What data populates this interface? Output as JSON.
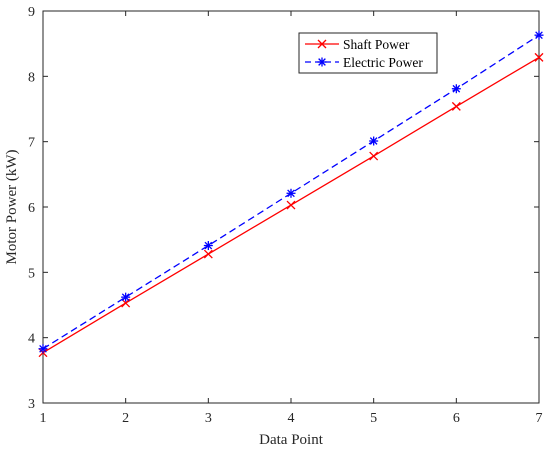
{
  "chart_data": {
    "type": "line",
    "title": "",
    "xlabel": "Data Point",
    "ylabel": "Motor Power (kW)",
    "xlim": [
      1,
      7
    ],
    "ylim": [
      3,
      9
    ],
    "x": [
      1,
      2,
      3,
      4,
      5,
      6,
      7
    ],
    "xticks": [
      "1",
      "2",
      "3",
      "4",
      "5",
      "6",
      "7"
    ],
    "yticks": [
      "3",
      "4",
      "5",
      "6",
      "7",
      "8",
      "9"
    ],
    "grid": false,
    "legend_position": "top-right",
    "series": [
      {
        "name": "Shaft Power",
        "values": [
          3.77,
          4.53,
          5.28,
          6.03,
          6.78,
          7.54,
          8.29
        ],
        "color": "#ff0000",
        "line_style": "solid",
        "marker": "x"
      },
      {
        "name": "Electric Power",
        "values": [
          3.83,
          4.62,
          5.41,
          6.21,
          7.01,
          7.81,
          8.63
        ],
        "color": "#0000ff",
        "line_style": "dashed",
        "marker": "asterisk"
      }
    ]
  }
}
